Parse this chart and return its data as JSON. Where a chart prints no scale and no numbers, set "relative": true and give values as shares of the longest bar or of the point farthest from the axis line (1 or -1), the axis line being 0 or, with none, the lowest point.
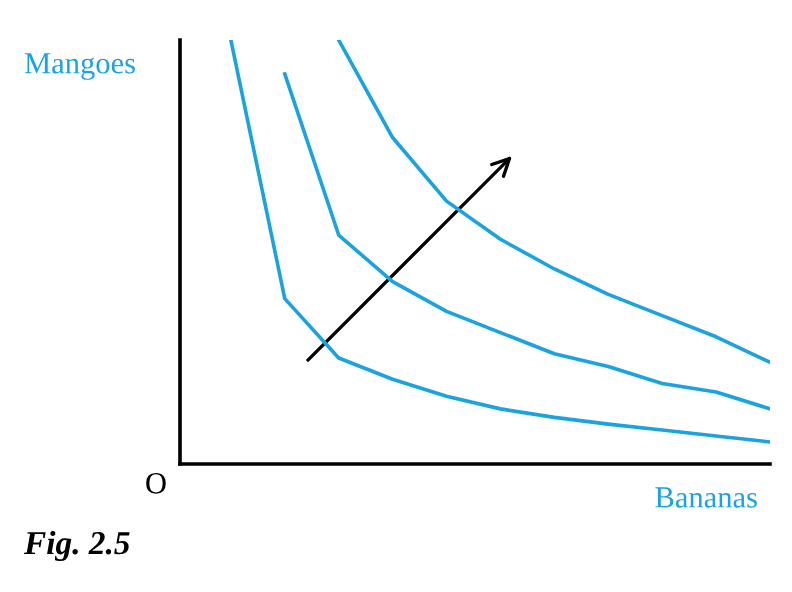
{
  "chart_data": {
    "type": "line",
    "relative": true,
    "xlabel": "Bananas",
    "ylabel": "Mangoes",
    "categories": [
      null,
      null,
      null,
      null,
      null,
      null,
      null,
      null,
      null,
      null,
      null
    ],
    "series": [
      {
        "color": "#1aa3e0",
        "values": [
          1.0,
          0.39,
          0.25,
          0.2,
          0.16,
          0.13,
          0.11,
          0.094,
          0.08,
          0.066,
          0.052
        ]
      },
      {
        "color": "#1aa3e0",
        "values": [
          null,
          0.92,
          0.54,
          0.43,
          0.36,
          0.31,
          0.26,
          0.23,
          0.19,
          0.17,
          0.13
        ]
      },
      {
        "color": "#1aa3e0",
        "values": [
          null,
          null,
          1.0,
          0.77,
          0.62,
          0.53,
          0.46,
          0.4,
          0.35,
          0.3,
          0.24
        ]
      }
    ],
    "annotations": [
      "O",
      "Fig. 2.5"
    ],
    "grid": false,
    "legend": false,
    "marker": "none",
    "line_style": "solid"
  }
}
